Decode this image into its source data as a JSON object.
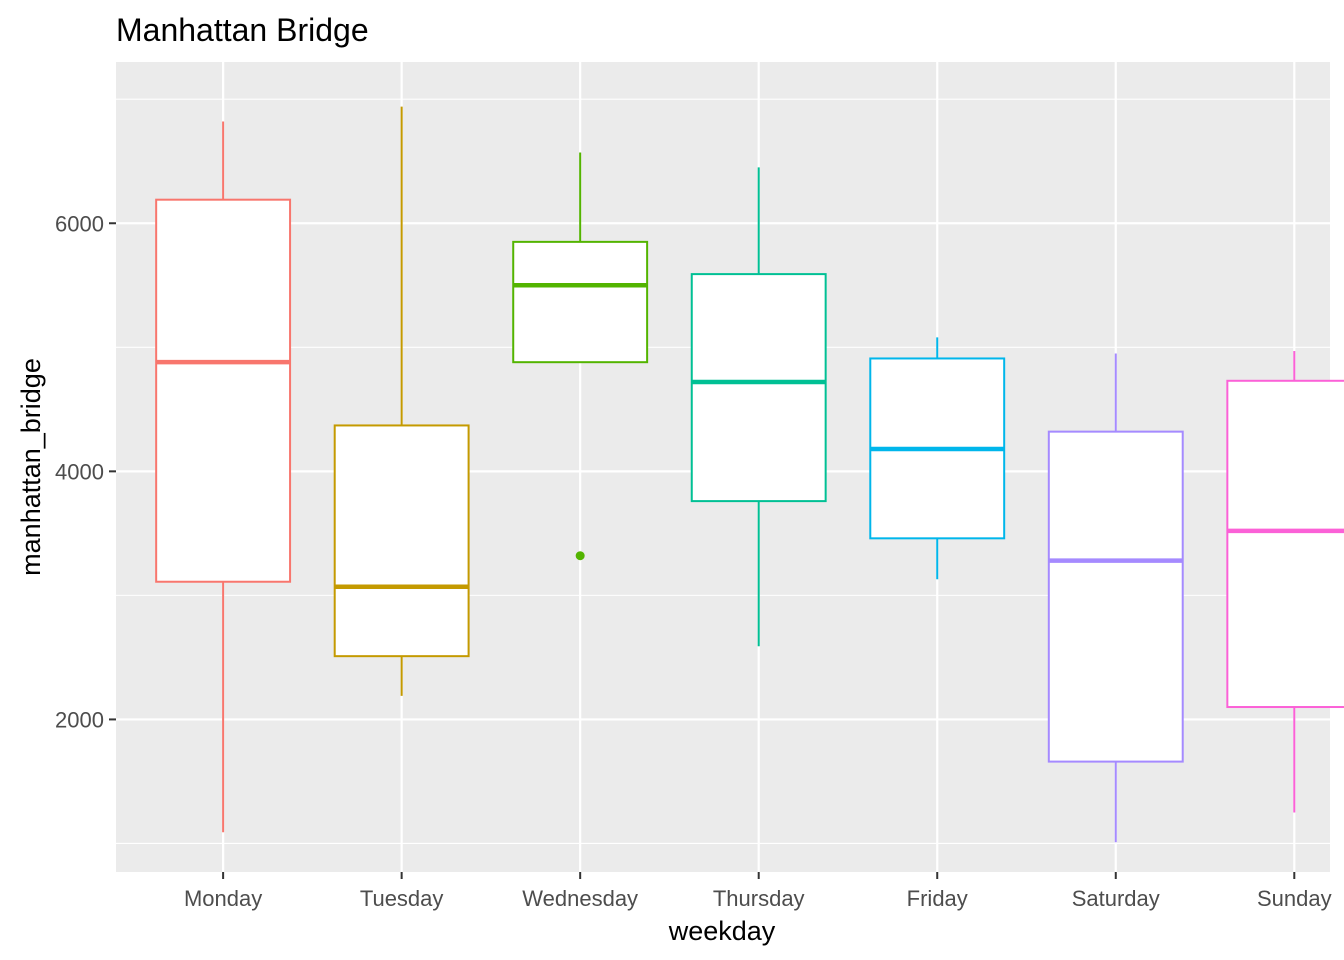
{
  "chart_data": {
    "type": "boxplot",
    "title": "Manhattan Bridge",
    "xlabel": "weekday",
    "ylabel": "manhattan_bridge",
    "categories": [
      "Monday",
      "Tuesday",
      "Wednesday",
      "Thursday",
      "Friday",
      "Saturday",
      "Sunday"
    ],
    "y_ticks": [
      2000,
      4000,
      6000
    ],
    "ylim": [
      770,
      7300
    ],
    "grid": true,
    "legend": "none",
    "boxes": [
      {
        "category": "Monday",
        "color": "#F8766D",
        "min": 1090,
        "q1": 3110,
        "median": 4880,
        "q3": 6190,
        "max": 6820,
        "outliers": []
      },
      {
        "category": "Tuesday",
        "color": "#C49A00",
        "min": 2190,
        "q1": 2510,
        "median": 3070,
        "q3": 4370,
        "max": 6940,
        "outliers": []
      },
      {
        "category": "Wednesday",
        "color": "#53B400",
        "min": 4880,
        "q1": 4880,
        "median": 5500,
        "q3": 5850,
        "max": 6570,
        "outliers": [
          3320
        ]
      },
      {
        "category": "Thursday",
        "color": "#00C094",
        "min": 2590,
        "q1": 3760,
        "median": 4720,
        "q3": 5590,
        "max": 6450,
        "outliers": []
      },
      {
        "category": "Friday",
        "color": "#00B6EB",
        "min": 3130,
        "q1": 3460,
        "median": 4180,
        "q3": 4910,
        "max": 5080,
        "outliers": []
      },
      {
        "category": "Saturday",
        "color": "#A58AFF",
        "min": 1010,
        "q1": 1660,
        "median": 3280,
        "q3": 4320,
        "max": 4950,
        "outliers": []
      },
      {
        "category": "Sunday",
        "color": "#FB61D7",
        "min": 1250,
        "q1": 2100,
        "median": 3520,
        "q3": 4730,
        "max": 4970,
        "outliers": []
      }
    ]
  }
}
